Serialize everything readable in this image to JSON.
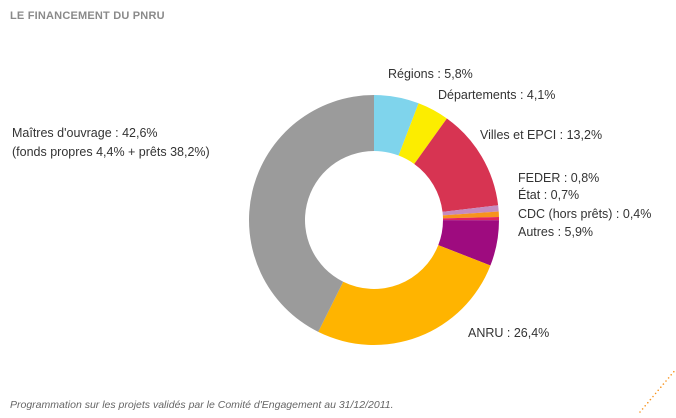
{
  "chart_data": {
    "type": "pie",
    "title": "LE FINANCEMENT DU PNRU",
    "footnote": "Programmation sur les projets validés par le Comité d'Engagement au 31/12/2011.",
    "donut": true,
    "slices": [
      {
        "name": "Régions",
        "value": 5.8,
        "color": "#7fd4ec",
        "label": "Régions : 5,8%"
      },
      {
        "name": "Départements",
        "value": 4.1,
        "color": "#fced00",
        "label": "Départements : 4,1%"
      },
      {
        "name": "Villes et EPCI",
        "value": 13.2,
        "color": "#d73452",
        "label": "Villes et EPCI : 13,2%"
      },
      {
        "name": "FEDER",
        "value": 0.8,
        "color": "#c58bbf",
        "label": "FEDER : 0,8%"
      },
      {
        "name": "État",
        "value": 0.7,
        "color": "#f7931e",
        "label": "État : 0,7%"
      },
      {
        "name": "CDC (hors prêts)",
        "value": 0.4,
        "color": "#e0255f",
        "label": "CDC (hors prêts) : 0,4%"
      },
      {
        "name": "Autres",
        "value": 5.9,
        "color": "#9e0b7f",
        "label": "Autres : 5,9%"
      },
      {
        "name": "ANRU",
        "value": 26.4,
        "color": "#ffb400",
        "label": "ANRU : 26,4%"
      },
      {
        "name": "Maîtres d'ouvrage",
        "value": 42.6,
        "color": "#9b9b9b",
        "label": "Maîtres d'ouvrage : 42,6%",
        "sublabel": "(fonds propres 4,4% + prêts 38,2%)"
      }
    ]
  }
}
